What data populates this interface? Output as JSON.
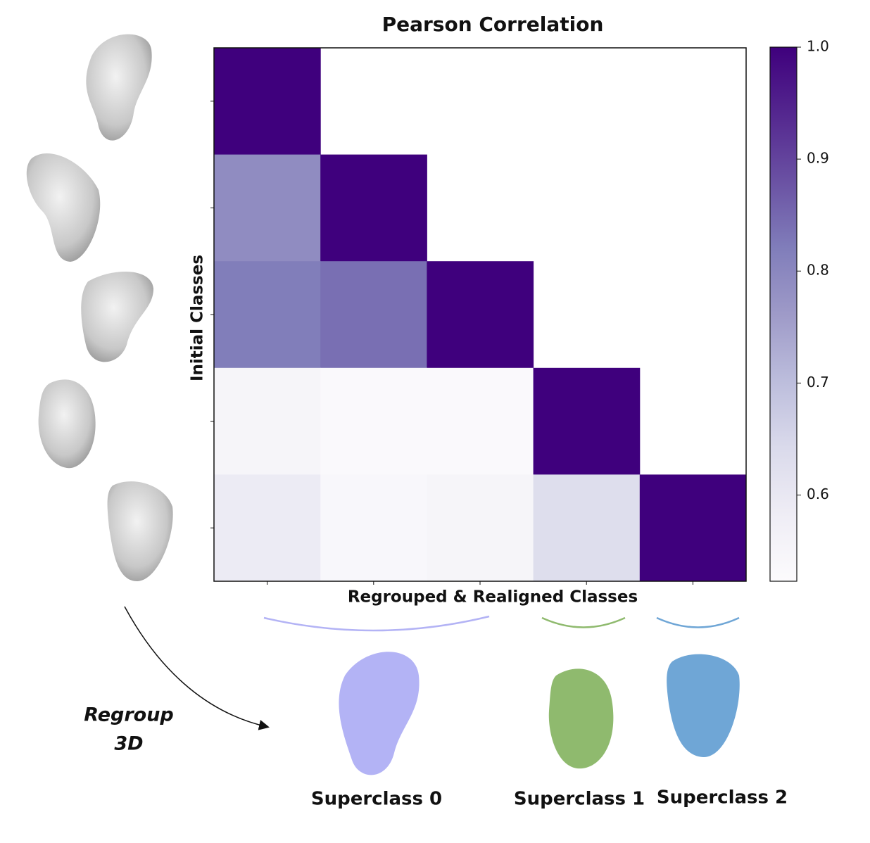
{
  "chart_data": {
    "type": "heatmap",
    "title": "Pearson Correlation",
    "xlabel": "Regrouped & Realigned Classes",
    "ylabel": "Initial Classes",
    "categories": [
      null,
      null,
      null,
      null,
      null
    ],
    "z": [
      [
        1.0,
        null,
        null,
        null,
        null
      ],
      [
        0.79,
        1.0,
        null,
        null,
        null
      ],
      [
        0.82,
        0.84,
        1.0,
        null,
        null
      ],
      [
        0.55,
        0.53,
        0.53,
        1.0,
        null
      ],
      [
        0.59,
        0.54,
        0.55,
        0.63,
        1.0
      ]
    ],
    "colormap": "Purples",
    "zlim": [
      0.523,
      1.0
    ],
    "zticks": [
      0.6,
      0.7,
      0.8,
      0.9,
      {
        "value": 1.0,
        "label": "1.0"
      }
    ],
    "annotation": [
      "Regroup",
      "3D"
    ],
    "superclasses": [
      {
        "name": "Superclass 0",
        "color": "#b3b3f5"
      },
      {
        "name": "Superclass 1",
        "color": "#8fba6e"
      },
      {
        "name": "Superclass 2",
        "color": "#6fa6d6"
      }
    ]
  }
}
